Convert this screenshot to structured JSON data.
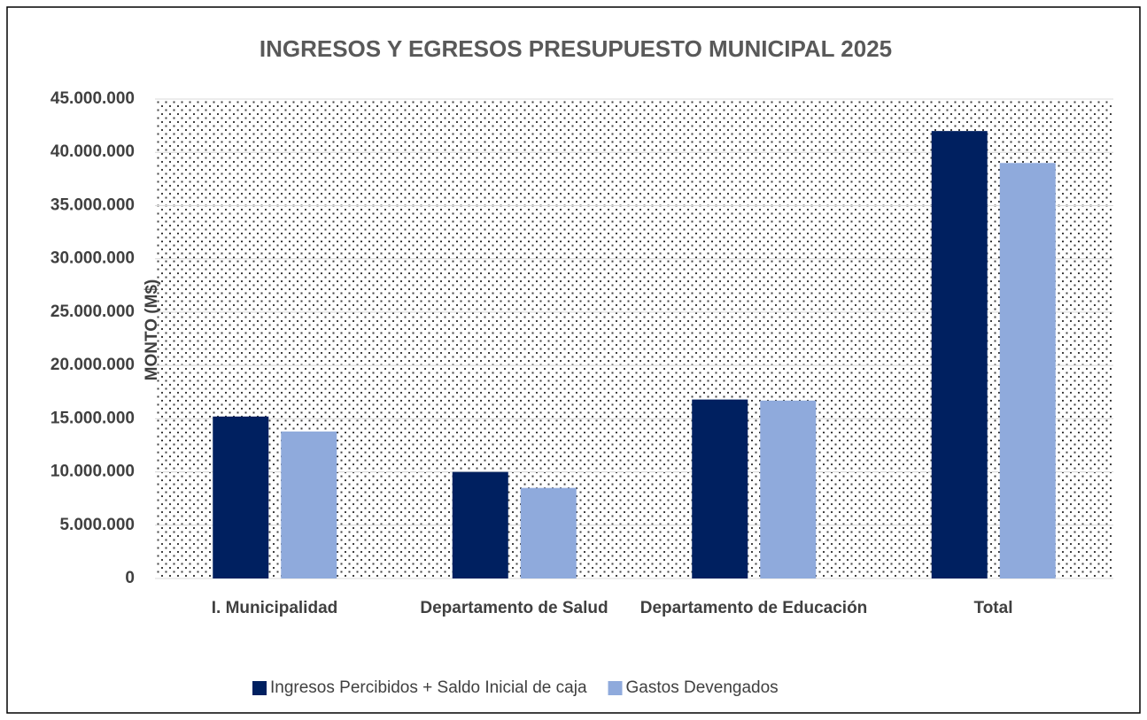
{
  "chart_data": {
    "type": "bar",
    "title": "INGRESOS Y EGRESOS PRESUPUESTO MUNICIPAL 2025",
    "y_label": "MONTO (M$)",
    "categories": [
      "I. Municipalidad",
      "Departamento de Salud",
      "Departamento de Educación",
      "Total"
    ],
    "series": [
      {
        "name": "Ingresos Percibidos + Saldo Inicial de caja",
        "color": "#002060",
        "values": [
          15200000,
          10000000,
          16800000,
          42000000
        ]
      },
      {
        "name": "Gastos Devengados",
        "color": "#8faadc",
        "values": [
          13800000,
          8500000,
          16700000,
          39000000
        ]
      }
    ],
    "ylim": [
      0,
      45000000
    ],
    "yticks": [
      0,
      {
        "value": 5000000,
        "label": "5.000.000"
      },
      {
        "value": 10000000,
        "label": "10.000.000"
      },
      {
        "value": 15000000,
        "label": "15.000.000"
      },
      {
        "value": 20000000,
        "label": "20.000.000"
      },
      {
        "value": 25000000,
        "label": "25.000.000"
      },
      {
        "value": 30000000,
        "label": "30.000.000"
      },
      {
        "value": 35000000,
        "label": "35.000.000"
      },
      {
        "value": 40000000,
        "label": "40.000.000"
      },
      {
        "value": 45000000,
        "label": "45.000.000"
      }
    ],
    "grid": true,
    "legend": "bottom"
  }
}
